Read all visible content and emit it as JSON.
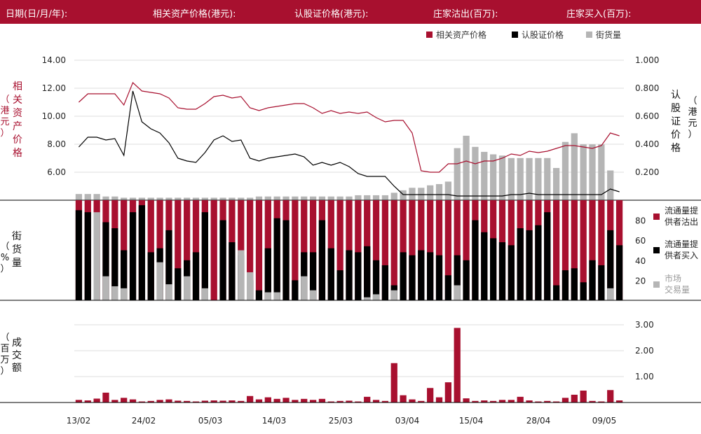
{
  "header": {
    "date_label": "日期(日/月/年):",
    "asset_price_label": "相关资产价格(港元):",
    "warrant_price_label": "认股证价格(港元):",
    "mm_sell_label": "庄家沽出(百万):",
    "mm_buy_label": "庄家买入(百万):"
  },
  "colors": {
    "asset": "#a8102f",
    "warrant": "#000000",
    "street": "#b5b5b5",
    "header_bg": "#a8102f"
  },
  "chart_data": [
    {
      "type": "line",
      "name": "price-panel",
      "legend": [
        "相关资产价格",
        "认股证价格",
        "街货量"
      ],
      "ylabel_left": "相关资产价格（港元）",
      "ylabel_right": "认股证价格（港元）",
      "y_left_ticks": [
        "14.00",
        "12.00",
        "10.00",
        "8.00",
        "6.00"
      ],
      "y_left_range": [
        4.0,
        15.5
      ],
      "y_right_ticks": [
        "1.000",
        "0.800",
        "0.600",
        "0.400",
        "0.200"
      ],
      "y_right_range": [
        0.0,
        1.15
      ],
      "asset_price": [
        11.0,
        11.6,
        11.6,
        11.6,
        11.6,
        10.8,
        12.4,
        11.8,
        11.7,
        11.6,
        11.3,
        10.6,
        10.5,
        10.5,
        10.9,
        11.4,
        11.5,
        11.3,
        11.4,
        10.6,
        10.4,
        10.6,
        10.7,
        10.8,
        10.9,
        10.9,
        10.6,
        10.2,
        10.4,
        10.2,
        10.3,
        10.2,
        10.3,
        9.9,
        9.6,
        9.7,
        9.7,
        8.8,
        6.1,
        6.0,
        6.0,
        6.6,
        6.6,
        6.8,
        6.6,
        6.8,
        6.8,
        7.0,
        7.3,
        7.2,
        7.5,
        7.4,
        7.5,
        7.7,
        7.9,
        7.9,
        7.8,
        7.7,
        7.9,
        8.8,
        8.6
      ],
      "warrant_price": [
        0.38,
        0.45,
        0.45,
        0.43,
        0.44,
        0.32,
        0.78,
        0.56,
        0.51,
        0.48,
        0.41,
        0.3,
        0.28,
        0.27,
        0.34,
        0.43,
        0.46,
        0.42,
        0.43,
        0.3,
        0.28,
        0.3,
        0.31,
        0.32,
        0.33,
        0.31,
        0.25,
        0.27,
        0.25,
        0.27,
        0.24,
        0.19,
        0.17,
        0.17,
        0.17,
        0.1,
        0.04,
        0.04,
        0.04,
        0.04,
        0.04,
        0.04,
        0.03,
        0.03,
        0.03,
        0.03,
        0.03,
        0.03,
        0.04,
        0.04,
        0.05,
        0.04,
        0.04,
        0.04,
        0.04,
        0.04,
        0.04,
        0.04,
        0.04,
        0.08,
        0.06
      ],
      "street_pct": [
        5,
        5,
        5,
        3,
        3,
        2,
        2,
        2,
        2,
        2,
        2,
        2,
        2,
        2,
        2,
        2,
        2,
        2,
        2,
        2,
        3,
        3,
        3,
        3,
        3,
        3,
        3,
        3,
        3,
        3,
        3,
        4,
        4,
        4,
        4,
        6,
        8,
        10,
        10,
        12,
        13,
        15,
        42,
        52,
        43,
        39,
        37,
        36,
        34,
        34,
        34,
        34,
        34,
        26,
        47,
        54,
        45,
        45,
        45,
        24,
        0
      ]
    },
    {
      "type": "bar",
      "name": "street-panel",
      "ylabel": "街货量（%）",
      "y_ticks": [
        "80",
        "60",
        "40",
        "20"
      ],
      "ylim": [
        0,
        100
      ],
      "legend": [
        "流通量提供者沽出",
        "流通量提供者买入",
        "市场交易量"
      ],
      "lp_sell": [
        0,
        0,
        0,
        2,
        2,
        2,
        2,
        2,
        2,
        2,
        2,
        2,
        2,
        2,
        2,
        2,
        2,
        2,
        2,
        2,
        2,
        2,
        2,
        2,
        2,
        2,
        2,
        2,
        2,
        2,
        2,
        2,
        2,
        2,
        2,
        2,
        2,
        2,
        2,
        2,
        2,
        2,
        2,
        2,
        2,
        2,
        2,
        2,
        2,
        2,
        2,
        2,
        2,
        2,
        2,
        2,
        2,
        2,
        2,
        2,
        2
      ],
      "lp_sell_top": [
        100,
        100,
        100,
        100,
        100,
        100,
        100,
        100,
        100,
        100,
        100,
        100,
        100,
        100,
        100,
        100,
        100,
        100,
        100,
        100,
        100,
        100,
        100,
        100,
        100,
        100,
        100,
        100,
        100,
        100,
        100,
        100,
        100,
        100,
        100,
        100,
        100,
        100,
        100,
        100,
        100,
        100,
        100,
        100,
        100,
        100,
        100,
        100,
        100,
        100,
        100,
        100,
        100,
        100,
        100,
        100,
        100,
        100,
        100,
        100,
        100
      ],
      "lp_buy": [
        90,
        88,
        0,
        78,
        72,
        50,
        88,
        95,
        48,
        52,
        70,
        32,
        40,
        48,
        88,
        0,
        80,
        58,
        45,
        20,
        10,
        52,
        82,
        80,
        20,
        48,
        48,
        80,
        52,
        30,
        50,
        48,
        54,
        40,
        35,
        15,
        48,
        45,
        50,
        48,
        45,
        25,
        45,
        40,
        80,
        68,
        62,
        58,
        55,
        72,
        70,
        75,
        88,
        15,
        30,
        32,
        18,
        40,
        35,
        70,
        55
      ],
      "market": [
        0,
        0,
        88,
        24,
        14,
        12,
        0,
        0,
        0,
        38,
        16,
        0,
        24,
        0,
        12,
        0,
        0,
        0,
        50,
        28,
        0,
        8,
        8,
        0,
        0,
        24,
        10,
        0,
        0,
        0,
        0,
        0,
        3,
        6,
        0,
        10,
        0,
        0,
        0,
        0,
        0,
        0,
        15,
        0,
        0,
        0,
        0,
        0,
        0,
        0,
        0,
        0,
        0,
        0,
        0,
        0,
        0,
        0,
        0,
        12,
        0
      ]
    },
    {
      "type": "bar",
      "name": "volume-panel",
      "ylabel": "成交额（百万）",
      "y_ticks": [
        "3.00",
        "2.00",
        "1.00"
      ],
      "ylim": [
        0,
        3.4
      ],
      "x_ticks": [
        "13/02",
        "24/02",
        "05/03",
        "14/03",
        "25/03",
        "03/04",
        "15/04",
        "28/04",
        "09/05"
      ],
      "values": [
        0.1,
        0.08,
        0.15,
        0.38,
        0.1,
        0.18,
        0.12,
        0.04,
        0.06,
        0.1,
        0.12,
        0.07,
        0.06,
        0.04,
        0.07,
        0.08,
        0.07,
        0.08,
        0.06,
        0.25,
        0.12,
        0.2,
        0.14,
        0.18,
        0.1,
        0.14,
        0.1,
        0.14,
        0.04,
        0.06,
        0.07,
        0.04,
        0.22,
        0.1,
        0.06,
        1.52,
        0.28,
        0.12,
        0.06,
        0.56,
        0.2,
        0.78,
        2.88,
        0.16,
        0.06,
        0.08,
        0.06,
        0.1,
        0.1,
        0.22,
        0.08,
        0.04,
        0.06,
        0.04,
        0.18,
        0.3,
        0.46,
        0.06,
        0.04,
        0.48,
        0.08
      ]
    }
  ]
}
